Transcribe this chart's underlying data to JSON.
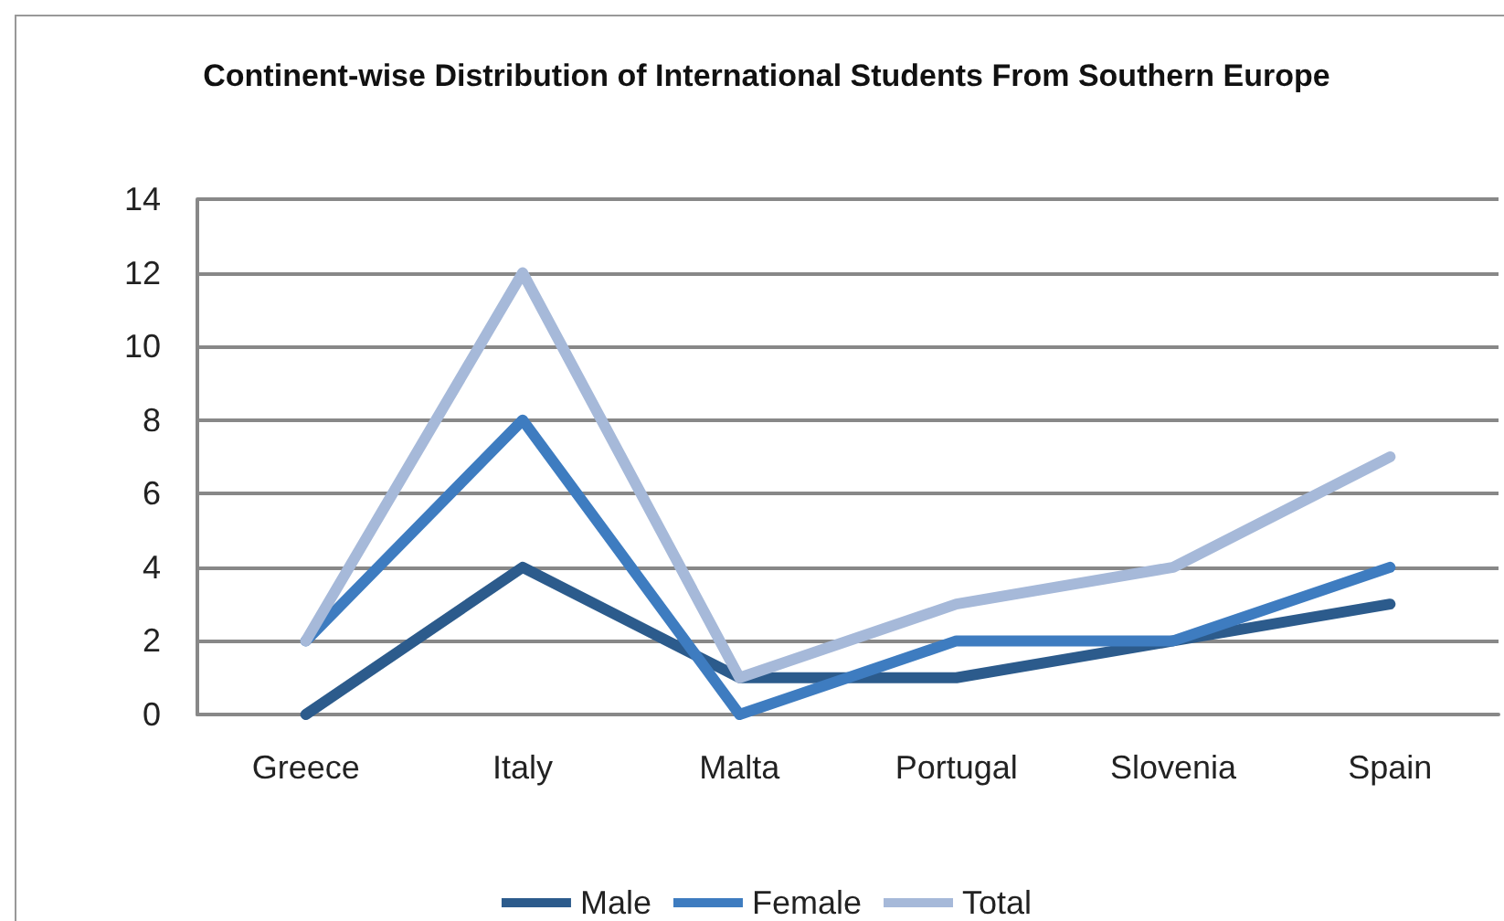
{
  "chart_data": {
    "type": "line",
    "title": "Continent-wise Distribution of International Students From Southern Europe",
    "categories": [
      "Greece",
      "Italy",
      "Malta",
      "Portugal",
      "Slovenia",
      "Spain"
    ],
    "series": [
      {
        "name": "Male",
        "color": "#2c5b8c",
        "values": [
          0,
          4,
          1,
          1,
          2,
          3
        ]
      },
      {
        "name": "Female",
        "color": "#3e7cc0",
        "values": [
          2,
          8,
          0,
          2,
          2,
          4
        ]
      },
      {
        "name": "Total",
        "color": "#a6b9d9",
        "values": [
          2,
          12,
          1,
          3,
          4,
          7
        ]
      }
    ],
    "ylim": [
      0,
      14
    ],
    "yticks": [
      0,
      2,
      4,
      6,
      8,
      10,
      12,
      14
    ],
    "grid": "y",
    "legend": "bottom",
    "marker": "none",
    "line_style": "solid"
  }
}
